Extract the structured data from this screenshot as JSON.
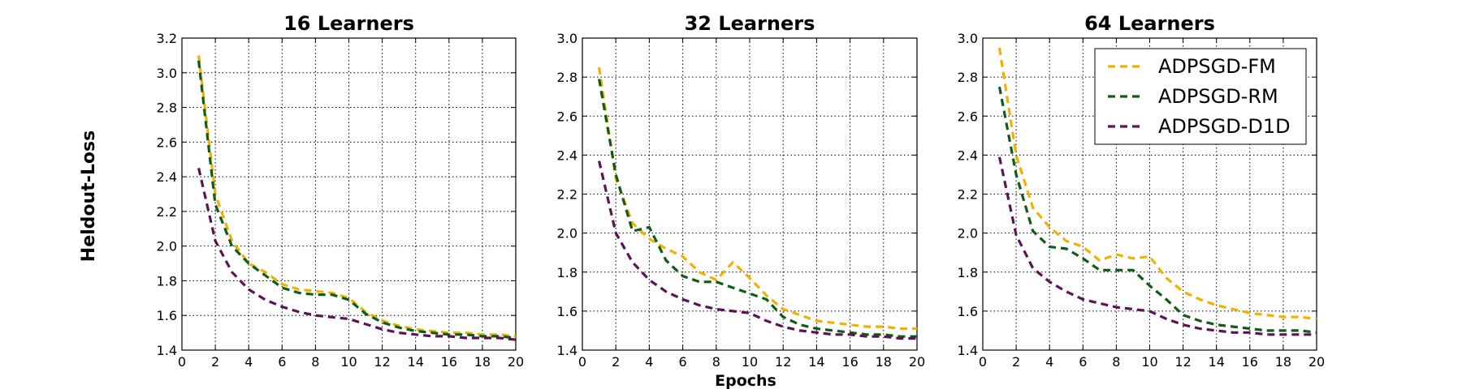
{
  "figure": {
    "shared_ylabel": "Heldout-Loss",
    "shared_xlabel": "Epochs"
  },
  "legend": {
    "placement": "top-right of third panel",
    "entries": [
      "ADPSGD-FM",
      "ADPSGD-RM",
      "ADPSGD-D1D"
    ]
  },
  "colors": {
    "ADPSGD-FM": "#f2b100",
    "ADPSGD-RM": "#0f5c14",
    "ADPSGD-D1D": "#5c1257"
  },
  "chart_data": [
    {
      "type": "line",
      "title": "16 Learners",
      "xlim": [
        0,
        20
      ],
      "ylim": [
        1.4,
        3.2
      ],
      "xticks": [
        0,
        2,
        4,
        6,
        8,
        10,
        12,
        14,
        16,
        18,
        20
      ],
      "yticks": [
        1.4,
        1.6,
        1.8,
        2.0,
        2.2,
        2.4,
        2.6,
        2.8,
        3.0,
        3.2
      ],
      "ytick_labels": [
        "1.4",
        "1.6",
        "1.8",
        "2.0",
        "2.2",
        "2.4",
        "2.6",
        "2.8",
        "3.0",
        "3.2"
      ],
      "grid": true,
      "x": [
        1,
        2,
        3,
        4,
        5,
        6,
        7,
        8,
        9,
        10,
        11,
        12,
        13,
        14,
        15,
        16,
        17,
        18,
        19,
        20
      ],
      "series": [
        {
          "name": "ADPSGD-FM",
          "values": [
            3.1,
            2.3,
            2.03,
            1.9,
            1.85,
            1.78,
            1.75,
            1.74,
            1.73,
            1.7,
            1.62,
            1.57,
            1.54,
            1.52,
            1.51,
            1.5,
            1.5,
            1.49,
            1.49,
            1.48
          ]
        },
        {
          "name": "ADPSGD-RM",
          "values": [
            3.07,
            2.24,
            2.0,
            1.9,
            1.83,
            1.76,
            1.73,
            1.72,
            1.72,
            1.69,
            1.61,
            1.56,
            1.53,
            1.51,
            1.5,
            1.49,
            1.49,
            1.48,
            1.48,
            1.47
          ]
        },
        {
          "name": "ADPSGD-D1D",
          "values": [
            2.45,
            2.03,
            1.85,
            1.75,
            1.69,
            1.65,
            1.62,
            1.6,
            1.59,
            1.58,
            1.55,
            1.52,
            1.5,
            1.49,
            1.48,
            1.48,
            1.47,
            1.47,
            1.47,
            1.46
          ]
        }
      ]
    },
    {
      "type": "line",
      "title": "32 Learners",
      "xlim": [
        0,
        20
      ],
      "ylim": [
        1.4,
        3.0
      ],
      "xticks": [
        0,
        2,
        4,
        6,
        8,
        10,
        12,
        14,
        16,
        18,
        20
      ],
      "yticks": [
        1.4,
        1.6,
        1.8,
        2.0,
        2.2,
        2.4,
        2.6,
        2.8,
        3.0
      ],
      "ytick_labels": [
        "1.4",
        "1.6",
        "1.8",
        "2.0",
        "2.2",
        "2.4",
        "2.6",
        "2.8",
        "3.0"
      ],
      "grid": true,
      "x": [
        1,
        2,
        3,
        4,
        5,
        6,
        7,
        8,
        9,
        10,
        11,
        12,
        13,
        14,
        15,
        16,
        17,
        18,
        19,
        20
      ],
      "series": [
        {
          "name": "ADPSGD-FM",
          "values": [
            2.85,
            2.28,
            2.05,
            1.97,
            1.92,
            1.88,
            1.8,
            1.76,
            1.85,
            1.77,
            1.68,
            1.61,
            1.58,
            1.55,
            1.54,
            1.53,
            1.52,
            1.52,
            1.51,
            1.51
          ]
        },
        {
          "name": "ADPSGD-RM",
          "values": [
            2.79,
            2.3,
            2.01,
            2.03,
            1.86,
            1.78,
            1.75,
            1.75,
            1.72,
            1.69,
            1.66,
            1.57,
            1.53,
            1.51,
            1.5,
            1.49,
            1.48,
            1.48,
            1.47,
            1.47
          ]
        },
        {
          "name": "ADPSGD-D1D",
          "values": [
            2.37,
            2.0,
            1.85,
            1.76,
            1.7,
            1.66,
            1.63,
            1.61,
            1.6,
            1.59,
            1.55,
            1.52,
            1.5,
            1.49,
            1.48,
            1.48,
            1.47,
            1.47,
            1.46,
            1.46
          ]
        }
      ]
    },
    {
      "type": "line",
      "title": "64 Learners",
      "xlim": [
        0,
        20
      ],
      "ylim": [
        1.4,
        3.0
      ],
      "xticks": [
        0,
        2,
        4,
        6,
        8,
        10,
        12,
        14,
        16,
        18,
        20
      ],
      "yticks": [
        1.4,
        1.6,
        1.8,
        2.0,
        2.2,
        2.4,
        2.6,
        2.8,
        3.0
      ],
      "ytick_labels": [
        "1.4",
        "1.6",
        "1.8",
        "2.0",
        "2.2",
        "2.4",
        "2.6",
        "2.8",
        "3.0"
      ],
      "grid": true,
      "x": [
        1,
        2,
        3,
        4,
        5,
        6,
        7,
        8,
        9,
        10,
        11,
        12,
        13,
        14,
        15,
        16,
        17,
        18,
        19,
        20
      ],
      "series": [
        {
          "name": "ADPSGD-FM",
          "values": [
            2.95,
            2.4,
            2.13,
            2.03,
            1.96,
            1.93,
            1.86,
            1.89,
            1.87,
            1.88,
            1.77,
            1.7,
            1.66,
            1.63,
            1.61,
            1.59,
            1.58,
            1.57,
            1.57,
            1.56
          ]
        },
        {
          "name": "ADPSGD-RM",
          "values": [
            2.75,
            2.3,
            2.01,
            1.93,
            1.92,
            1.87,
            1.81,
            1.81,
            1.81,
            1.73,
            1.66,
            1.58,
            1.55,
            1.53,
            1.52,
            1.51,
            1.5,
            1.5,
            1.5,
            1.49
          ]
        },
        {
          "name": "ADPSGD-D1D",
          "values": [
            2.39,
            1.99,
            1.82,
            1.75,
            1.7,
            1.66,
            1.64,
            1.62,
            1.61,
            1.6,
            1.56,
            1.53,
            1.51,
            1.5,
            1.49,
            1.49,
            1.48,
            1.48,
            1.48,
            1.48
          ]
        }
      ]
    }
  ]
}
